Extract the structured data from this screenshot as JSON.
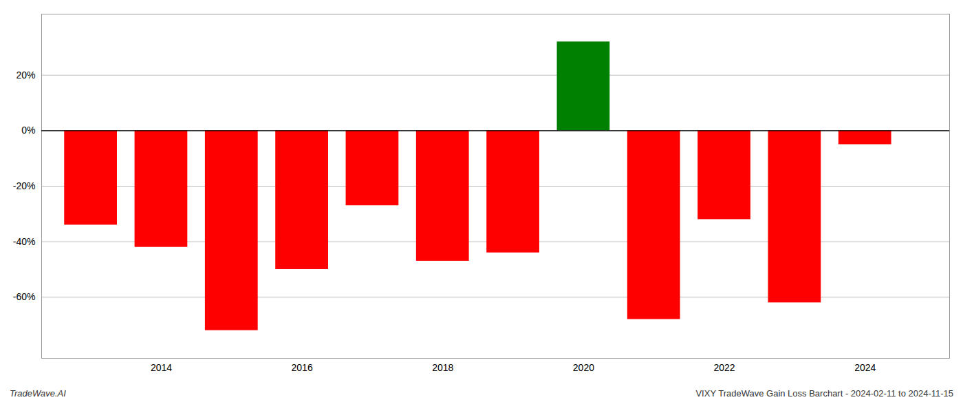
{
  "chart_data": {
    "type": "bar",
    "x": [
      2013,
      2014,
      2015,
      2016,
      2017,
      2018,
      2019,
      2020,
      2021,
      2022,
      2023,
      2024
    ],
    "values": [
      -34,
      -42,
      -72,
      -50,
      -27,
      -47,
      -44,
      32,
      -68,
      -32,
      -62,
      -5
    ],
    "colors": [
      "#ff0000",
      "#ff0000",
      "#ff0000",
      "#ff0000",
      "#ff0000",
      "#ff0000",
      "#ff0000",
      "#008000",
      "#ff0000",
      "#ff0000",
      "#ff0000",
      "#ff0000"
    ],
    "xlim": [
      2012.3,
      2025.2
    ],
    "xticks": [
      2014,
      2016,
      2018,
      2020,
      2022,
      2024
    ],
    "ylim": [
      -82,
      42
    ],
    "yticks": [
      {
        "value": -60,
        "label": "-60%"
      },
      {
        "value": -40,
        "label": "-40%"
      },
      {
        "value": -20,
        "label": "-20%"
      },
      {
        "value": 0,
        "label": "0%"
      },
      {
        "value": 20,
        "label": "20%"
      }
    ],
    "grid": true,
    "annotations": [
      "TradeWave.AI",
      "VIXY TradeWave Gain Loss Barchart - 2024-02-11 to 2024-11-15"
    ]
  }
}
